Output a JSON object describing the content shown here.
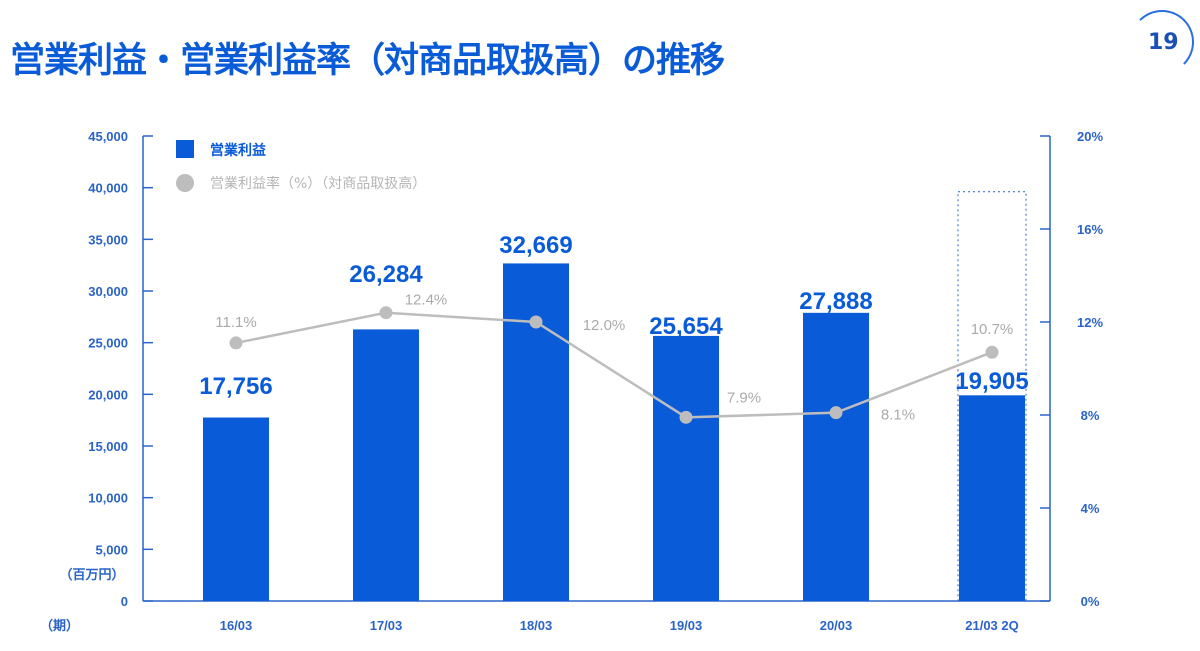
{
  "title": "営業利益・営業利益率（対商品取扱高）の推移",
  "page_number": "19",
  "chart_data": {
    "type": "bar",
    "title": "営業利益・営業利益率（対商品取扱高）の推移",
    "categories": [
      "16/03",
      "17/03",
      "18/03",
      "19/03",
      "20/03",
      "21/03 2Q"
    ],
    "xlabel": "（期）",
    "ylabel": "（百万円）",
    "ylim": [
      0,
      45000
    ],
    "yticks": [
      "0",
      "5,000",
      "10,000",
      "15,000",
      "20,000",
      "25,000",
      "30,000",
      "35,000",
      "40,000",
      "45,000"
    ],
    "y2lim": [
      0,
      20
    ],
    "y2ticks": [
      "0%",
      "4%",
      "8%",
      "12%",
      "16%",
      "20%"
    ],
    "grid": false,
    "legend_position": "top-left",
    "series": [
      {
        "name": "営業利益",
        "type": "bar",
        "color": "#0a5bd8",
        "values": [
          17756,
          26284,
          32669,
          25654,
          27888,
          19905
        ],
        "labels": [
          "17,756",
          "26,284",
          "32,669",
          "25,654",
          "27,888",
          "19,905"
        ]
      },
      {
        "name": "営業利益率（%）（対商品取扱高）",
        "type": "line",
        "axis": "right",
        "color": "#bdbdbd",
        "values": [
          11.1,
          12.4,
          12.0,
          7.9,
          8.1,
          10.7
        ],
        "labels": [
          "11.1%",
          "12.4%",
          "12.0%",
          "7.9%",
          "8.1%",
          "10.7%"
        ]
      }
    ],
    "forecast_outline": {
      "category": "21/03 2Q",
      "value": 39600,
      "style": "dotted"
    }
  }
}
